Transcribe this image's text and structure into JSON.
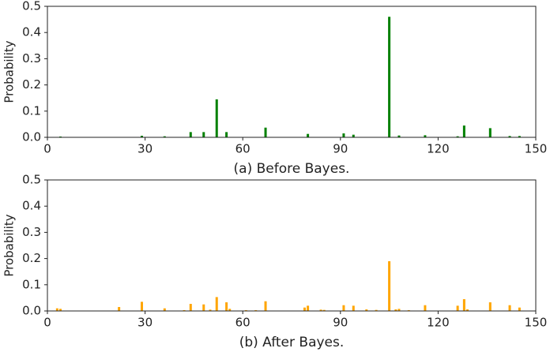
{
  "chart_data": [
    {
      "type": "bar",
      "xlabel": "(a) Before Bayes.",
      "ylabel": "Probability",
      "color": "#008000",
      "x": [
        4,
        29,
        36,
        44,
        48,
        52,
        55,
        67,
        80,
        91,
        94,
        105,
        108,
        116,
        126,
        128,
        136,
        142,
        145
      ],
      "values": [
        0.003,
        0.006,
        0.004,
        0.02,
        0.02,
        0.145,
        0.02,
        0.037,
        0.013,
        0.015,
        0.01,
        0.46,
        0.007,
        0.008,
        0.004,
        0.045,
        0.035,
        0.005,
        0.005
      ],
      "xlim": [
        0,
        150
      ],
      "xticks": [
        0,
        30,
        60,
        90,
        120,
        150
      ],
      "ylim": [
        0,
        0.5
      ],
      "yticks": [
        {
          "value": 0,
          "label": "0.0"
        },
        0.1,
        0.2,
        0.3,
        0.4,
        0.5
      ]
    },
    {
      "type": "bar",
      "xlabel": "(b) After Bayes.",
      "ylabel": "Probability",
      "color": "#ffa500",
      "x": [
        3,
        4,
        22,
        29,
        36,
        42,
        44,
        48,
        50,
        52,
        55,
        56,
        61,
        64,
        67,
        79,
        80,
        84,
        85,
        91,
        94,
        98,
        101,
        105,
        107,
        108,
        111,
        116,
        126,
        128,
        129,
        136,
        142,
        145
      ],
      "values": [
        0.01,
        0.008,
        0.015,
        0.035,
        0.01,
        0.003,
        0.027,
        0.025,
        0.005,
        0.053,
        0.033,
        0.008,
        0.003,
        0.003,
        0.037,
        0.013,
        0.02,
        0.005,
        0.004,
        0.022,
        0.02,
        0.006,
        0.004,
        0.19,
        0.006,
        0.008,
        0.003,
        0.022,
        0.02,
        0.045,
        0.006,
        0.033,
        0.022,
        0.013
      ],
      "xlim": [
        0,
        150
      ],
      "xticks": [
        0,
        30,
        60,
        90,
        120,
        150
      ],
      "ylim": [
        0,
        0.5
      ],
      "yticks": [
        {
          "value": 0,
          "label": "0.0"
        },
        0.1,
        0.2,
        0.3,
        0.4,
        0.5
      ]
    }
  ]
}
